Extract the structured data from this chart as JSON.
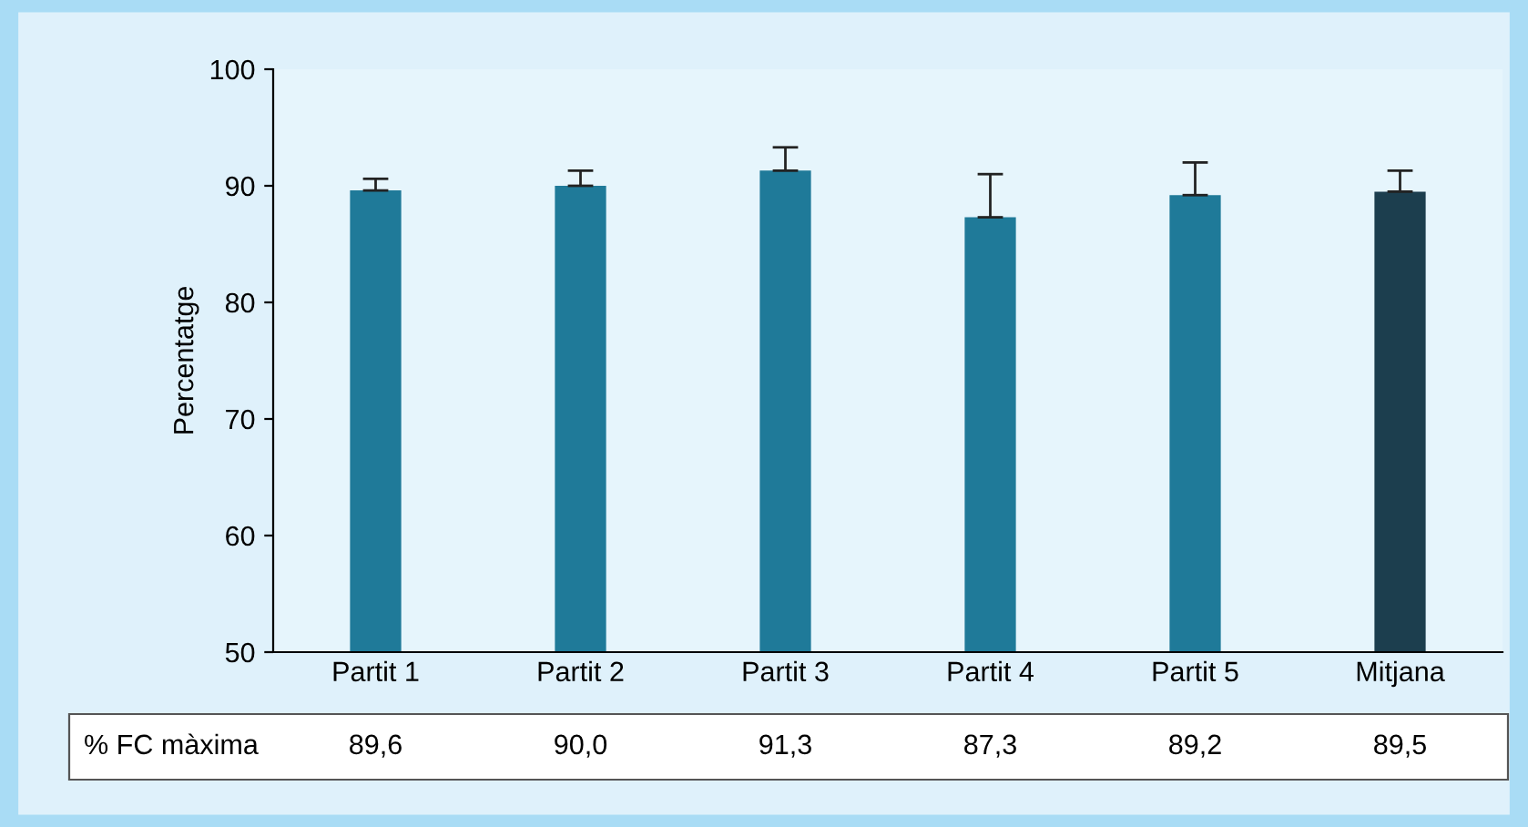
{
  "chart_data": {
    "type": "bar",
    "ylabel": "Percentatge",
    "categories": [
      "Partit 1",
      "Partit 2",
      "Partit 3",
      "Partit 4",
      "Partit 5",
      "Mitjana"
    ],
    "values": [
      89.6,
      90.0,
      91.3,
      87.3,
      89.2,
      89.5
    ],
    "errors": [
      1.0,
      1.3,
      2.0,
      3.7,
      2.8,
      1.8
    ],
    "colors": [
      "#1f7a99",
      "#1f7a99",
      "#1f7a99",
      "#1f7a99",
      "#1f7a99",
      "#1c3e4e"
    ],
    "value_labels": [
      "89,6",
      "90,0",
      "91,3",
      "87,3",
      "89,2",
      "89,5"
    ],
    "annotations": [
      "% FC màxima"
    ],
    "ylim": [
      50,
      100
    ],
    "yticks": [
      50,
      60,
      70,
      80,
      90,
      100
    ],
    "grid": false,
    "legend": false
  }
}
